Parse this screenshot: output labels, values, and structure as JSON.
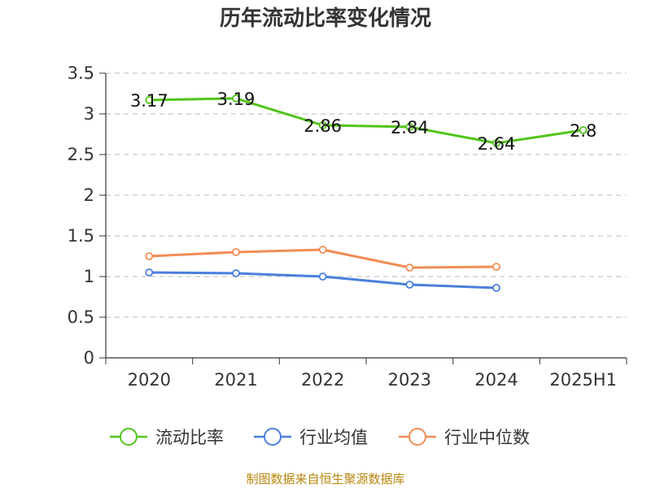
{
  "chart_data": {
    "type": "line",
    "title": "历年流动比率变化情况",
    "categories": [
      "2020",
      "2021",
      "2022",
      "2023",
      "2024",
      "2025H1"
    ],
    "ylim": [
      0,
      3.5
    ],
    "yticks": [
      "0",
      "0.5",
      "1",
      "1.5",
      "2",
      "2.5",
      "3",
      "3.5"
    ],
    "grid": true,
    "legend_position": "bottom",
    "series": [
      {
        "name": "流动比率",
        "values": [
          3.17,
          3.19,
          2.86,
          2.84,
          2.64,
          2.8
        ],
        "color": "#52c41a",
        "labels": [
          "3.17",
          "3.19",
          "2.86",
          "2.84",
          "2.64",
          "2.8"
        ]
      },
      {
        "name": "行业均值",
        "values": [
          1.05,
          1.04,
          1.0,
          0.9,
          0.86,
          null
        ],
        "color": "#4a7fdc"
      },
      {
        "name": "行业中位数",
        "values": [
          1.25,
          1.3,
          1.33,
          1.11,
          1.12,
          null
        ],
        "color": "#f28c55"
      }
    ]
  },
  "footer": "制图数据来自恒生聚源数据库"
}
